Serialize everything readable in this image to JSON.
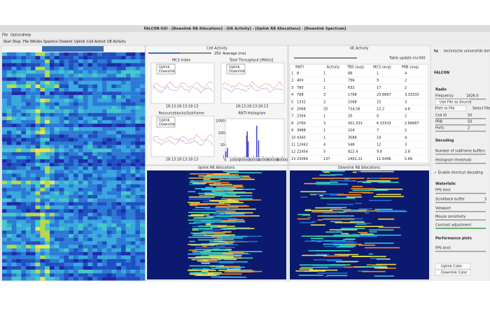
{
  "window": {
    "title": "FALCON GUI - [Downlink RB Allocations] - [UE Activity] - [Uplink RB Allocations] - [Downlink Spectrum]"
  },
  "menu": [
    "File",
    "Options",
    "Help"
  ],
  "toolbar": [
    "Start",
    "Stop",
    "File Windows",
    "Spectrum",
    "Downlink",
    "Uplink",
    "Cell Activity",
    "UE Activity"
  ],
  "spectrum": {
    "title": "Downlink Spectrum"
  },
  "cell_activity": {
    "title": "Cell Activity",
    "average_value": 250,
    "average_label": "Average (ms)",
    "plots": [
      {
        "title": "MCS Index",
        "legend": [
          "Uplink",
          "Downlink"
        ],
        "time_label": "18:13:18:13:18:13"
      },
      {
        "title": "Total Throughput [Mbit/s]",
        "legend": [
          "Uplink",
          "Downlink"
        ],
        "time_label": "18:13:18:13:18:13"
      },
      {
        "title": "Resourceblocks/Subframe",
        "legend": [
          "Uplink",
          "Downlink"
        ],
        "time_label": "18:13:18:13:18:13"
      }
    ],
    "histogram": {
      "title": "RNTI Histogram",
      "yscale": "log",
      "ylim": [
        1,
        1500
      ],
      "yticks": [
        1,
        10,
        100,
        1000
      ],
      "xlim": [
        0,
        62000
      ],
      "xticks": [
        0,
        10000,
        20000,
        30000,
        40000,
        50000,
        60000
      ],
      "x": [
        400,
        2068,
        22454,
        23066,
        24000,
        33000,
        35000
      ],
      "values": [
        3,
        6,
        60,
        137,
        20,
        400,
        25
      ],
      "color": "#4a4ad0"
    }
  },
  "uplink": {
    "title": "Uplink RB Allocations"
  },
  "downlink": {
    "title": "Downlink RB Allocations"
  },
  "ue_activity": {
    "title": "UE Activity",
    "update_label": "Table update inv",
    "update_value": 500,
    "columns": [
      "RNTI",
      "Activity",
      "TBS (avg)",
      "MCS (avg)",
      "PRB (avg)"
    ],
    "rows": [
      [
        1,
        8,
        1,
        88,
        1,
        4
      ],
      [
        2,
        400,
        1,
        796,
        9,
        2
      ],
      [
        3,
        780,
        1,
        632,
        17,
        2
      ],
      [
        4,
        788,
        3,
        1768,
        23.6667,
        3.33333
      ],
      [
        5,
        1332,
        2,
        1068,
        15,
        3
      ],
      [
        6,
        2068,
        25,
        734.56,
        12.2,
        4.6
      ],
      [
        7,
        2304,
        1,
        20,
        0,
        2
      ],
      [
        8,
        2700,
        3,
        301.333,
        6.33333,
        2.66667
      ],
      [
        9,
        3988,
        1,
        224,
        7,
        2
      ],
      [
        10,
        4360,
        1,
        3088,
        19,
        4
      ],
      [
        11,
        12442,
        4,
        548,
        12,
        3
      ],
      [
        12,
        22454,
        5,
        822.4,
        9.8,
        2.8
      ],
      [
        13,
        23066,
        137,
        2402.22,
        11.6496,
        5.89
      ]
    ]
  },
  "sidebar": {
    "logo": "tu",
    "logo_sub": "technische universität dortmund",
    "brand": "FALCON",
    "radio": "Radio",
    "frequency_label": "Frequency",
    "frequency_value": "1826.0",
    "use_file": "Use File as Source",
    "path_placeholder": "Path to File",
    "select_file": "Select File",
    "cell_id_label": "Cell ID",
    "cell_id": 50,
    "prb_label": "PRB",
    "prb": 50,
    "ports_label": "Ports",
    "ports": 2,
    "decoding": "Decoding",
    "subframe_buffers": "Number of subframe buffers",
    "histogram_threshold": "Histogram threshold",
    "shortcut": "Enable shortcut decoding",
    "waterfalls": "Waterfalls",
    "fps_limit": "FPS limit",
    "scrollback": "Scrollback buffer",
    "scrollback_value": 3,
    "viewport": "Viewport",
    "mouse": "Mouse sensitivity",
    "contrast": "Contrast adjustment",
    "performance": "Performance plots",
    "perf_fps": "FPS limit",
    "uplink_color": "Uplink Color",
    "downlink_color": "Downlink Color"
  }
}
